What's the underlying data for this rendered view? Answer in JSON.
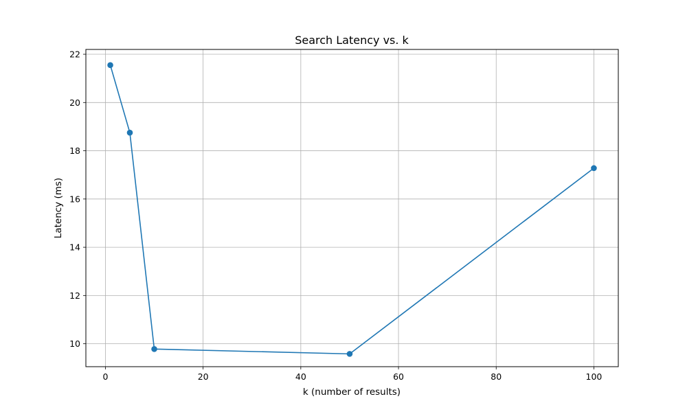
{
  "chart_data": {
    "type": "line",
    "title": "Search Latency vs. k",
    "xlabel": "k (number of results)",
    "ylabel": "Latency (ms)",
    "xlim": [
      -4,
      105
    ],
    "ylim": [
      9.05,
      22.2
    ],
    "x_ticks": [
      "0",
      "20",
      "40",
      "60",
      "80",
      "100"
    ],
    "y_ticks": [
      "10",
      "12",
      "14",
      "16",
      "18",
      "20",
      "22"
    ],
    "grid": true,
    "series": [
      {
        "x": [
          1,
          5,
          10,
          50,
          100
        ],
        "y": [
          21.55,
          18.75,
          9.78,
          9.58,
          17.28
        ],
        "color": "#1f77b4",
        "marker": "circle"
      }
    ]
  }
}
